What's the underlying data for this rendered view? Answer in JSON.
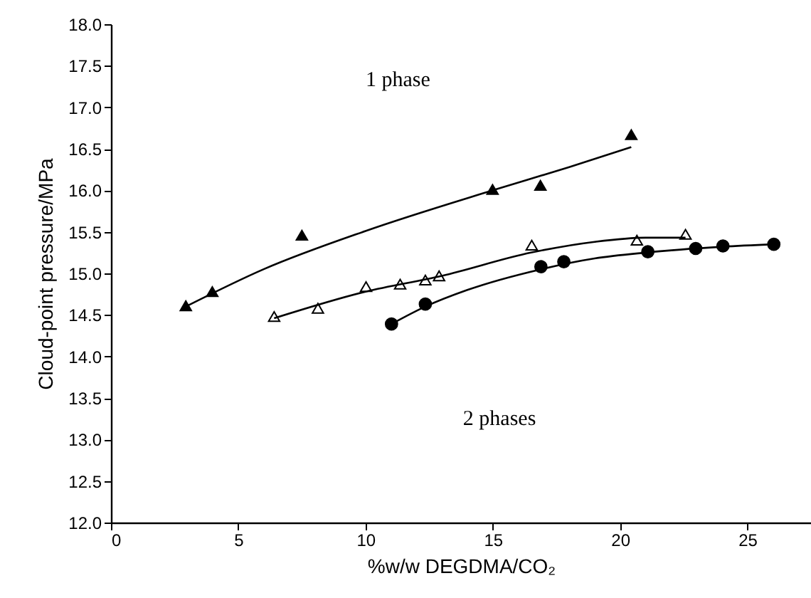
{
  "chart_data": {
    "type": "scatter",
    "xlabel": "%w/w DEGDMA/CO₂",
    "ylabel": "Cloud-point pressure/MPa",
    "xlim": [
      0,
      27.5
    ],
    "xticks": [
      0,
      5,
      10,
      15,
      20,
      25
    ],
    "ylim": [
      12,
      18
    ],
    "yticks": [
      {
        "value": 12,
        "label": "12.0"
      },
      12.5,
      {
        "value": 13,
        "label": "13.0"
      },
      13.5,
      {
        "value": 14,
        "label": "14.0"
      },
      14.5,
      {
        "value": 15,
        "label": "15.0"
      },
      15.5,
      {
        "value": 16,
        "label": "16.0"
      },
      16.5,
      {
        "value": 17,
        "label": "17.0"
      },
      17.5,
      {
        "value": 18,
        "label": "18.0"
      }
    ],
    "grid": false,
    "annotations": [
      "1 phase",
      "2 phases"
    ],
    "series": [
      {
        "marker": "triangle",
        "color": "#000000",
        "x": [
          2.94,
          3.98,
          7.5,
          14.99,
          16.87,
          20.44
        ],
        "values": [
          14.61,
          14.78,
          15.46,
          16.01,
          16.06,
          16.67
        ]
      },
      {
        "marker": "triangle",
        "color": "#ffffff",
        "x": [
          6.41,
          8.13,
          10.02,
          11.36,
          12.35,
          12.89,
          16.53,
          20.66,
          22.57
        ],
        "values": [
          14.48,
          14.58,
          14.84,
          14.87,
          14.92,
          14.97,
          15.34,
          15.4,
          15.47
        ]
      },
      {
        "marker": "circle",
        "color": "#000000",
        "x": [
          11.02,
          12.35,
          16.89,
          17.79,
          21.09,
          22.97,
          24.04,
          26.04
        ],
        "values": [
          14.39,
          14.63,
          15.08,
          15.14,
          15.26,
          15.3,
          15.33,
          15.35
        ]
      },
      {
        "type": "line",
        "marker": "none",
        "color": "#000000",
        "x": [
          2.94,
          6,
          10,
          15,
          18,
          20.44
        ],
        "values": [
          14.6,
          15.05,
          15.51,
          16.0,
          16.28,
          16.52
        ]
      },
      {
        "type": "line",
        "marker": "none",
        "color": "#000000",
        "x": [
          6.41,
          10,
          13,
          16.5,
          19,
          21,
          22.57
        ],
        "values": [
          14.46,
          14.78,
          14.97,
          15.25,
          15.38,
          15.43,
          15.43
        ]
      },
      {
        "type": "line",
        "marker": "none",
        "color": "#000000",
        "x": [
          11.02,
          12.35,
          14,
          16.9,
          19,
          21,
          24,
          26.04
        ],
        "values": [
          14.39,
          14.6,
          14.8,
          15.05,
          15.18,
          15.25,
          15.32,
          15.35
        ]
      }
    ]
  }
}
